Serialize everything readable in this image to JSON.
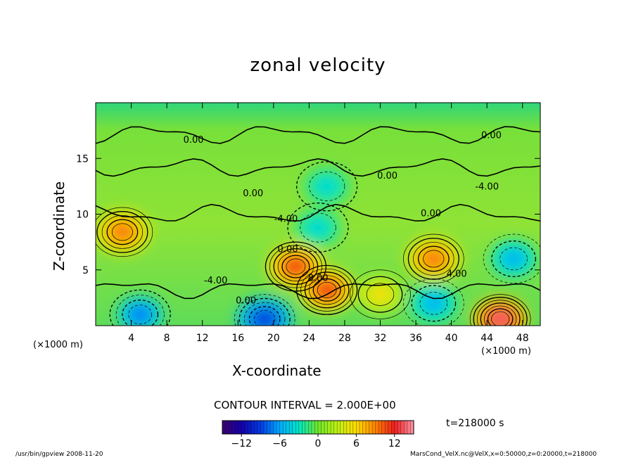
{
  "chart_data": {
    "type": "heatmap",
    "title": "zonal velocity",
    "xlabel": "X-coordinate",
    "ylabel": "Z-coordinate",
    "x_unit_left": "(×1000 m)",
    "x_unit_right": "(×1000 m)",
    "xlim": [
      0,
      50
    ],
    "ylim": [
      0,
      20
    ],
    "x_ticks": [
      "4",
      "8",
      "12",
      "16",
      "20",
      "24",
      "28",
      "32",
      "36",
      "40",
      "44",
      "48"
    ],
    "x_tick_values": [
      4,
      8,
      12,
      16,
      20,
      24,
      28,
      32,
      36,
      40,
      44,
      48
    ],
    "y_ticks": [
      "5",
      "10",
      "15"
    ],
    "y_tick_values": [
      5,
      10,
      15
    ],
    "contour_interval": "CONTOUR INTERVAL = 2.000E+00",
    "contour_labels": [
      {
        "text": "0.00",
        "x": 11.0,
        "z": 16.4
      },
      {
        "text": "0.00",
        "x": 44.5,
        "z": 16.8
      },
      {
        "text": "0.00",
        "x": 32.8,
        "z": 13.2
      },
      {
        "text": "-4.00",
        "x": 44.0,
        "z": 12.2
      },
      {
        "text": "0.00",
        "x": 17.7,
        "z": 11.6
      },
      {
        "text": "-4.00",
        "x": 21.4,
        "z": 9.3
      },
      {
        "text": "0.00",
        "x": 37.7,
        "z": 9.8
      },
      {
        "text": "0.00",
        "x": 21.6,
        "z": 6.6
      },
      {
        "text": "8.00",
        "x": 25.0,
        "z": 4.0
      },
      {
        "text": "-4.00",
        "x": 13.5,
        "z": 3.8
      },
      {
        "text": "4.00",
        "x": 40.6,
        "z": 4.4
      },
      {
        "text": "0.00",
        "x": 16.9,
        "z": 2.0
      }
    ],
    "features": [
      {
        "kind": "max",
        "x": 3.0,
        "z": 8.4,
        "value": 10
      },
      {
        "kind": "max",
        "x": 22.5,
        "z": 5.3,
        "value": 12
      },
      {
        "kind": "max",
        "x": 26.0,
        "z": 3.2,
        "value": 12
      },
      {
        "kind": "max",
        "x": 38.0,
        "z": 6.0,
        "value": 10
      },
      {
        "kind": "max",
        "x": 45.5,
        "z": 0.6,
        "value": 14
      },
      {
        "kind": "max",
        "x": 32.0,
        "z": 2.8,
        "value": 6
      },
      {
        "kind": "min",
        "x": 47.0,
        "z": 6.0,
        "value": -6
      },
      {
        "kind": "min",
        "x": 38.0,
        "z": 2.0,
        "value": -6
      },
      {
        "kind": "min",
        "x": 19.0,
        "z": 0.6,
        "value": -10
      },
      {
        "kind": "min",
        "x": 5.0,
        "z": 1.0,
        "value": -8
      },
      {
        "kind": "min",
        "x": 25.0,
        "z": 8.8,
        "value": -4
      },
      {
        "kind": "min",
        "x": 26.0,
        "z": 12.5,
        "value": -4
      }
    ],
    "colorbar": {
      "ticks": [
        "−12",
        "−6",
        "0",
        "6",
        "12"
      ],
      "tick_values": [
        -12,
        -6,
        0,
        6,
        12
      ],
      "range": [
        -15,
        15
      ]
    },
    "time_label": "t=218000 s"
  },
  "footer": {
    "left": "/usr/bin/gpview   2008-11-20",
    "right": "MarsCond_VelX.nc@VelX,x=0:50000,z=0:20000,t=218000"
  }
}
